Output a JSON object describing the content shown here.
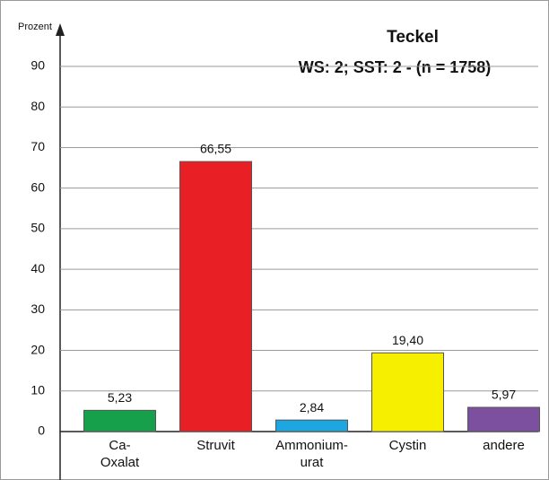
{
  "chart_data": {
    "type": "bar",
    "title": "Teckel",
    "subtitle": "WS: 2; SST: 2 - (n = 1758)",
    "y_label": "Prozent",
    "categories": [
      "Ca-Oxalat",
      "Struvit",
      "Ammonium-urat",
      "Cystin",
      "andere"
    ],
    "values": [
      5.23,
      66.55,
      2.84,
      19.4,
      5.97
    ],
    "value_labels": [
      "5,23",
      "66,55",
      "2,84",
      "19,40",
      "5,97"
    ],
    "colors": [
      "#17a04c",
      "#e91f26",
      "#1ea6e0",
      "#f6ef00",
      "#7c4f9f"
    ],
    "ylim": [
      0,
      90
    ],
    "yticks": [
      0,
      10,
      20,
      30,
      40,
      50,
      60,
      70,
      80,
      90
    ],
    "grid": true
  }
}
